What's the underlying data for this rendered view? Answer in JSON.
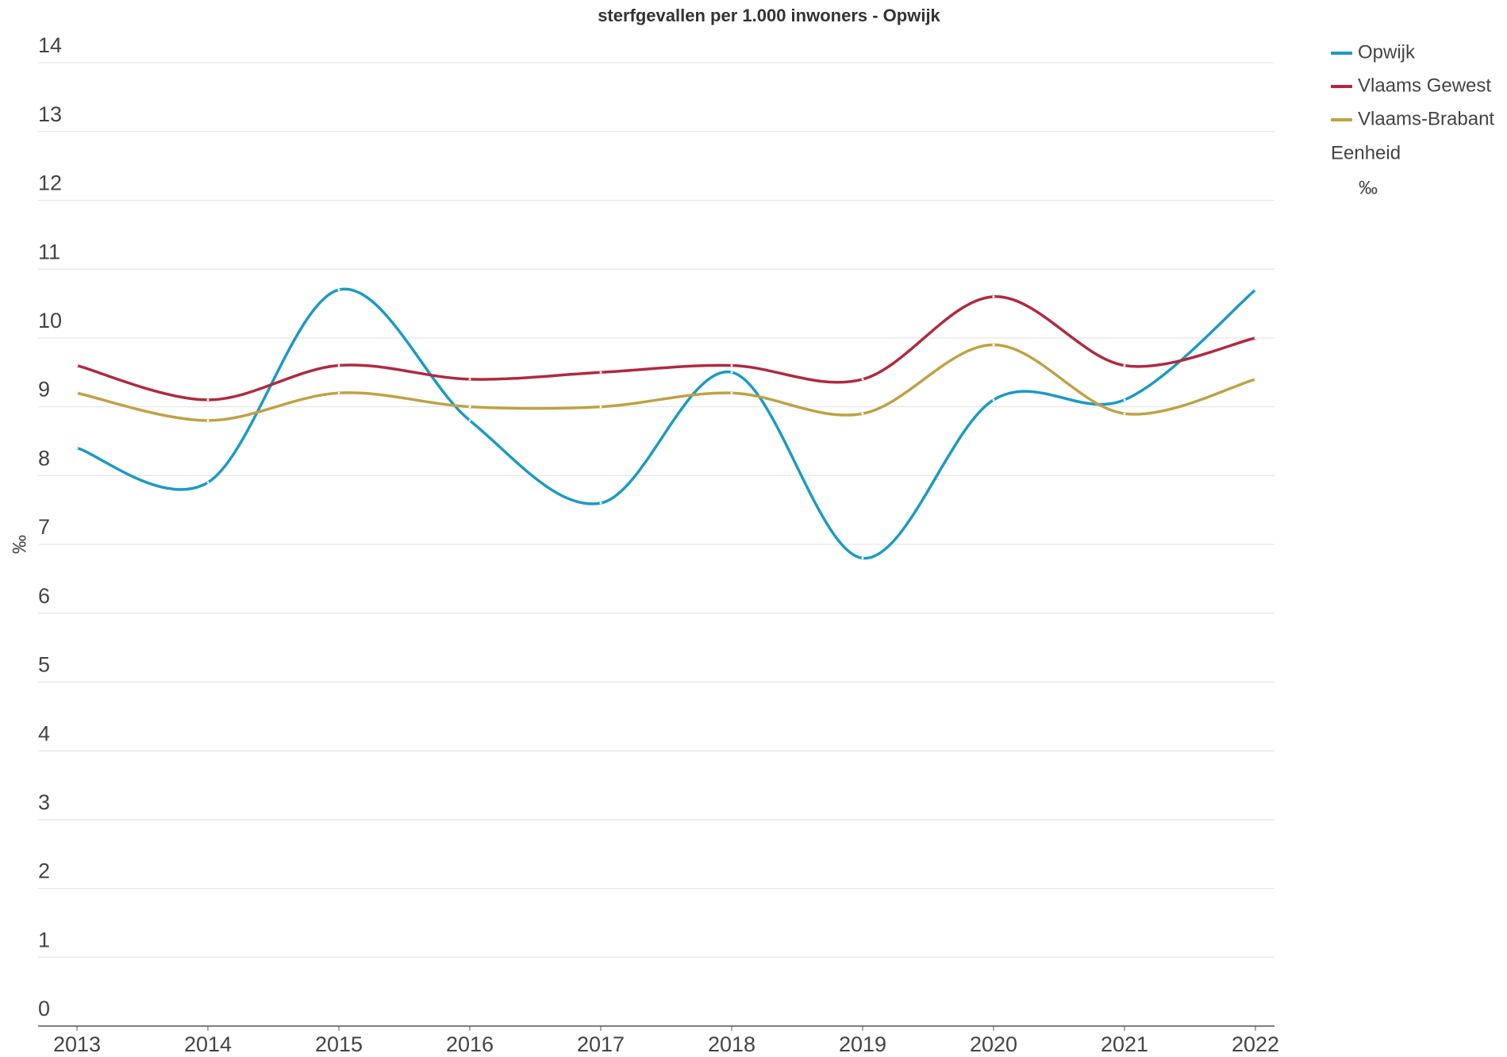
{
  "chart_data": {
    "type": "line",
    "title": "sterfgevallen per 1.000 inwoners - Opwijk",
    "ylabel": "‰",
    "legend_title": "Eenheid",
    "unit": "‰",
    "x": [
      2013,
      2014,
      2015,
      2016,
      2017,
      2018,
      2019,
      2020,
      2021,
      2022
    ],
    "xlim": [
      2013,
      2022
    ],
    "xticks": [
      2013,
      2014,
      2015,
      2016,
      2017,
      2018,
      2019,
      2020,
      2021,
      2022
    ],
    "ylim": [
      0,
      14
    ],
    "yticks": [
      0,
      1,
      2,
      3,
      4,
      5,
      6,
      7,
      8,
      9,
      10,
      11,
      12,
      13,
      14
    ],
    "grid": true,
    "legend": "right",
    "series": [
      {
        "name": "Opwijk",
        "color": "#1a9bc4",
        "values": [
          8.4,
          7.9,
          10.7,
          8.8,
          7.6,
          9.5,
          6.8,
          9.1,
          9.1,
          10.7
        ]
      },
      {
        "name": "Vlaams Gewest",
        "color": "#b02a3f",
        "values": [
          9.6,
          9.1,
          9.6,
          9.4,
          9.5,
          9.6,
          9.4,
          10.6,
          9.6,
          10.0
        ]
      },
      {
        "name": "Vlaams-Brabant",
        "color": "#bfa244",
        "values": [
          9.2,
          8.8,
          9.2,
          9.0,
          9.0,
          9.2,
          8.9,
          9.9,
          8.9,
          9.4
        ]
      }
    ]
  }
}
